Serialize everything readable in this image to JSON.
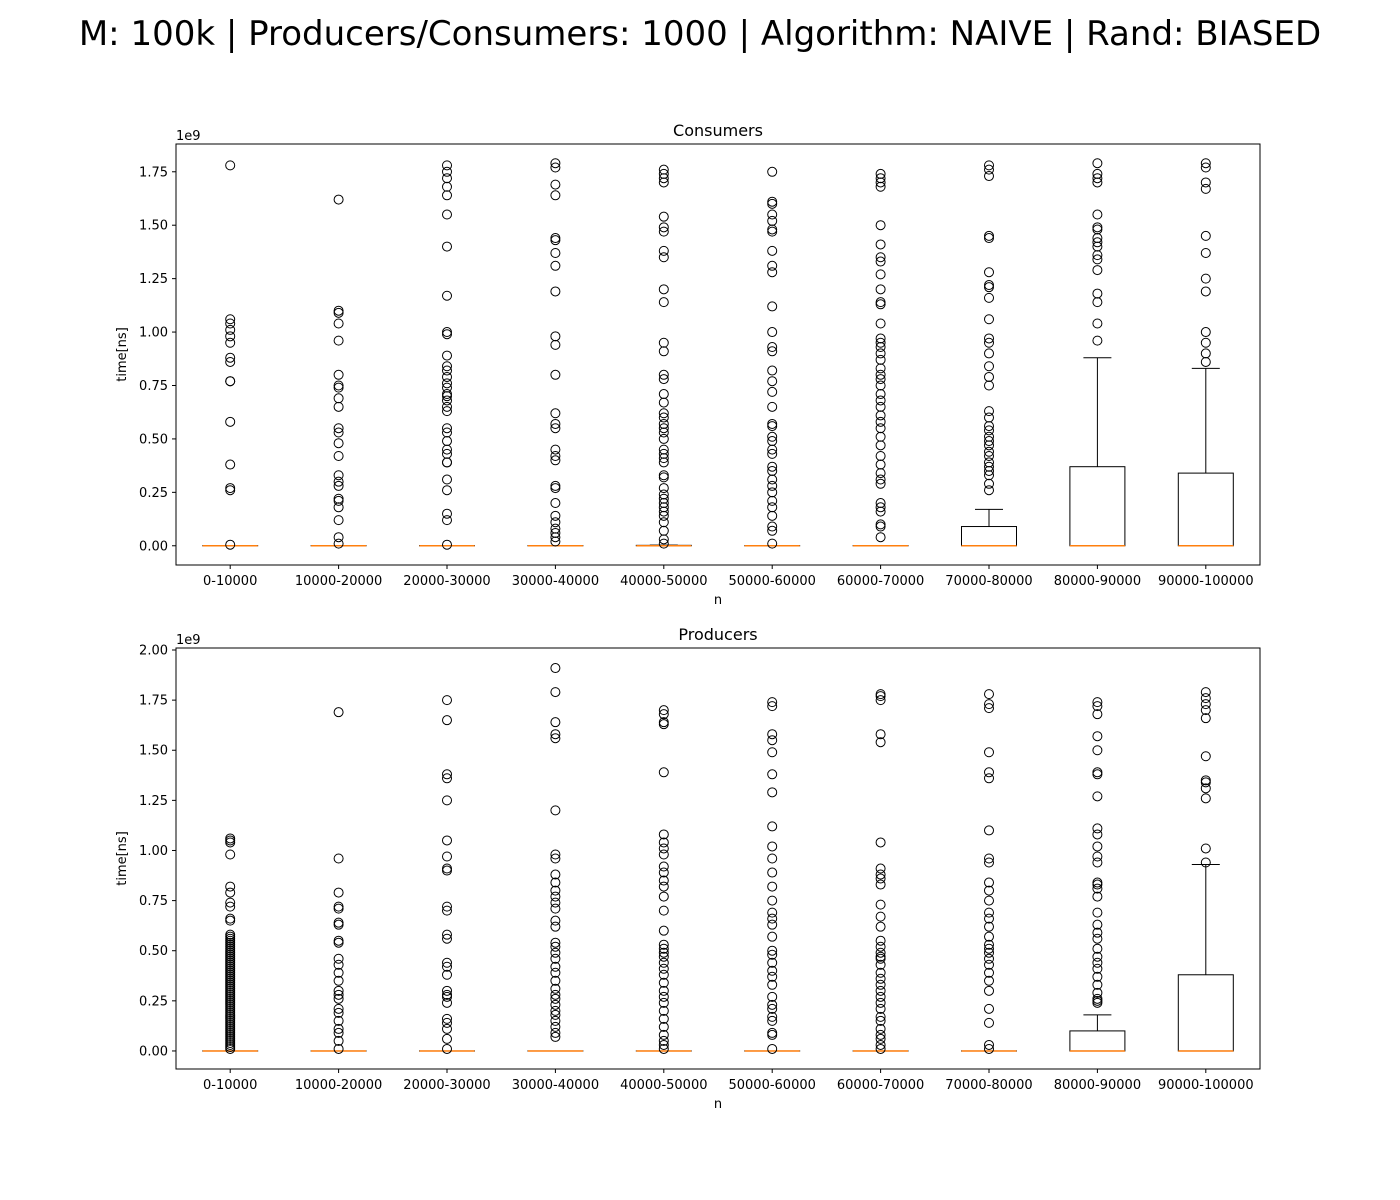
{
  "figure": {
    "title": "M: 100k | Producers/Consumers: 1000 | Algorithm: NAIVE | Rand: BIASED"
  },
  "colors": {
    "median": "#ff7f0e",
    "box": "#000000",
    "flier": "#000000",
    "background": "#ffffff"
  },
  "chart_data": [
    {
      "type": "box",
      "title": "Consumers",
      "xlabel": "n",
      "ylabel": "time[ns]",
      "y_offset_label": "1e9",
      "ylim": [
        -0.09,
        1.88
      ],
      "yticks": [
        0,
        0.25,
        0.5,
        0.75,
        1.0,
        1.25,
        1.5,
        1.75
      ],
      "ytick_labels": [
        "0.00",
        "0.25",
        "0.50",
        "0.75",
        "1.00",
        "1.25",
        "1.50",
        "1.75"
      ],
      "categories": [
        "0-10000",
        "10000-20000",
        "20000-30000",
        "30000-40000",
        "40000-50000",
        "50000-60000",
        "60000-70000",
        "70000-80000",
        "80000-90000",
        "90000-100000"
      ],
      "boxes": [
        {
          "q1": 0,
          "median": 0,
          "q3": 0,
          "whisker_low": 0,
          "whisker_high": 0,
          "fliers": [
            1.78,
            1.06,
            1.04,
            1.01,
            0.98,
            0.95,
            0.88,
            0.86,
            0.77,
            0.77,
            0.58,
            0.38,
            0.27,
            0.26,
            0.005
          ]
        },
        {
          "q1": 0,
          "median": 0,
          "q3": 0,
          "whisker_low": 0,
          "whisker_high": 0,
          "fliers": [
            1.62,
            1.1,
            1.09,
            1.04,
            0.96,
            0.8,
            0.75,
            0.74,
            0.69,
            0.65,
            0.55,
            0.53,
            0.48,
            0.42,
            0.33,
            0.3,
            0.28,
            0.22,
            0.21,
            0.18,
            0.12,
            0.04,
            0.01
          ]
        },
        {
          "q1": 0,
          "median": 0,
          "q3": 0,
          "whisker_low": 0,
          "whisker_high": 0,
          "fliers": [
            1.78,
            1.75,
            1.72,
            1.68,
            1.64,
            1.55,
            1.4,
            1.17,
            1.0,
            0.99,
            0.89,
            0.84,
            0.82,
            0.79,
            0.76,
            0.74,
            0.71,
            0.7,
            0.68,
            0.65,
            0.63,
            0.55,
            0.53,
            0.49,
            0.45,
            0.43,
            0.39,
            0.39,
            0.31,
            0.26,
            0.15,
            0.12,
            0.005
          ]
        },
        {
          "q1": 0,
          "median": 0,
          "q3": 0,
          "whisker_low": 0,
          "whisker_high": 0,
          "fliers": [
            1.79,
            1.77,
            1.69,
            1.64,
            1.44,
            1.43,
            1.37,
            1.31,
            1.19,
            0.98,
            0.94,
            0.8,
            0.62,
            0.57,
            0.55,
            0.45,
            0.42,
            0.4,
            0.28,
            0.27,
            0.2,
            0.14,
            0.11,
            0.08,
            0.06,
            0.04,
            0.02
          ]
        },
        {
          "q1": 0,
          "median": 0,
          "q3": 0.002,
          "whisker_low": 0,
          "whisker_high": 0.003,
          "fliers": [
            1.76,
            1.74,
            1.72,
            1.7,
            1.54,
            1.49,
            1.47,
            1.38,
            1.35,
            1.2,
            1.14,
            0.95,
            0.91,
            0.8,
            0.78,
            0.71,
            0.67,
            0.62,
            0.6,
            0.57,
            0.55,
            0.53,
            0.5,
            0.45,
            0.43,
            0.41,
            0.39,
            0.33,
            0.32,
            0.27,
            0.24,
            0.22,
            0.2,
            0.18,
            0.16,
            0.14,
            0.11,
            0.07,
            0.03,
            0.01
          ]
        },
        {
          "q1": 0,
          "median": 0,
          "q3": 0,
          "whisker_low": 0,
          "whisker_high": 0,
          "fliers": [
            1.75,
            1.61,
            1.6,
            1.55,
            1.52,
            1.48,
            1.47,
            1.38,
            1.31,
            1.28,
            1.12,
            1.0,
            0.93,
            0.91,
            0.82,
            0.77,
            0.72,
            0.65,
            0.57,
            0.56,
            0.51,
            0.49,
            0.45,
            0.43,
            0.37,
            0.35,
            0.31,
            0.28,
            0.25,
            0.21,
            0.18,
            0.14,
            0.09,
            0.07,
            0.01
          ]
        },
        {
          "q1": 0,
          "median": 0,
          "q3": 0,
          "whisker_low": 0,
          "whisker_high": 0,
          "fliers": [
            1.74,
            1.72,
            1.7,
            1.68,
            1.5,
            1.41,
            1.35,
            1.33,
            1.27,
            1.2,
            1.14,
            1.13,
            1.04,
            0.97,
            0.95,
            0.93,
            0.9,
            0.87,
            0.83,
            0.8,
            0.78,
            0.75,
            0.71,
            0.68,
            0.65,
            0.61,
            0.58,
            0.55,
            0.51,
            0.47,
            0.42,
            0.38,
            0.34,
            0.31,
            0.29,
            0.2,
            0.18,
            0.16,
            0.1,
            0.09,
            0.04
          ]
        },
        {
          "q1": 0,
          "median": 0,
          "q3": 0.09,
          "whisker_low": 0,
          "whisker_high": 0.17,
          "fliers": [
            1.78,
            1.76,
            1.73,
            1.45,
            1.44,
            1.28,
            1.22,
            1.21,
            1.16,
            1.06,
            0.97,
            0.95,
            0.9,
            0.84,
            0.79,
            0.75,
            0.63,
            0.6,
            0.56,
            0.54,
            0.51,
            0.49,
            0.47,
            0.44,
            0.42,
            0.39,
            0.37,
            0.35,
            0.33,
            0.29,
            0.26
          ]
        },
        {
          "q1": 0,
          "median": 0,
          "q3": 0.37,
          "whisker_low": 0,
          "whisker_high": 0.88,
          "fliers": [
            1.79,
            1.74,
            1.72,
            1.7,
            1.55,
            1.49,
            1.48,
            1.44,
            1.42,
            1.4,
            1.36,
            1.34,
            1.29,
            1.18,
            1.14,
            1.04,
            0.96
          ]
        },
        {
          "q1": 0,
          "median": 0,
          "q3": 0.34,
          "whisker_low": 0,
          "whisker_high": 0.83,
          "fliers": [
            1.79,
            1.77,
            1.7,
            1.67,
            1.45,
            1.37,
            1.25,
            1.19,
            1.0,
            0.95,
            0.9,
            0.86
          ]
        }
      ]
    },
    {
      "type": "box",
      "title": "Producers",
      "xlabel": "n",
      "ylabel": "time[ns]",
      "y_offset_label": "1e9",
      "ylim": [
        -0.09,
        2.01
      ],
      "yticks": [
        0,
        0.25,
        0.5,
        0.75,
        1.0,
        1.25,
        1.5,
        1.75,
        2.0
      ],
      "ytick_labels": [
        "0.00",
        "0.25",
        "0.50",
        "0.75",
        "1.00",
        "1.25",
        "1.50",
        "1.75",
        "2.00"
      ],
      "categories": [
        "0-10000",
        "10000-20000",
        "20000-30000",
        "30000-40000",
        "40000-50000",
        "50000-60000",
        "60000-70000",
        "70000-80000",
        "80000-90000",
        "90000-100000"
      ],
      "boxes": [
        {
          "q1": 0,
          "median": 0,
          "q3": 0,
          "whisker_low": 0,
          "whisker_high": 0,
          "fliers": [
            1.06,
            1.05,
            1.04,
            0.98,
            0.82,
            0.79,
            0.74,
            0.72,
            0.66,
            0.65,
            0.58,
            0.57,
            0.56,
            0.55,
            0.54,
            0.53,
            0.52,
            0.51,
            0.5,
            0.49,
            0.48,
            0.47,
            0.46,
            0.45,
            0.44,
            0.43,
            0.42,
            0.41,
            0.4,
            0.39,
            0.38,
            0.37,
            0.36,
            0.35,
            0.34,
            0.33,
            0.32,
            0.31,
            0.3,
            0.29,
            0.28,
            0.27,
            0.26,
            0.25,
            0.24,
            0.23,
            0.22,
            0.21,
            0.2,
            0.19,
            0.18,
            0.17,
            0.16,
            0.15,
            0.14,
            0.13,
            0.12,
            0.11,
            0.1,
            0.09,
            0.08,
            0.07,
            0.06,
            0.05,
            0.04,
            0.03,
            0.02,
            0.01
          ]
        },
        {
          "q1": 0,
          "median": 0,
          "q3": 0,
          "whisker_low": 0,
          "whisker_high": 0,
          "fliers": [
            1.69,
            0.96,
            0.79,
            0.72,
            0.71,
            0.64,
            0.63,
            0.55,
            0.54,
            0.46,
            0.43,
            0.39,
            0.35,
            0.3,
            0.28,
            0.26,
            0.21,
            0.19,
            0.15,
            0.11,
            0.09,
            0.05,
            0.01
          ]
        },
        {
          "q1": 0,
          "median": 0,
          "q3": 0,
          "whisker_low": 0,
          "whisker_high": 0,
          "fliers": [
            1.75,
            1.65,
            1.38,
            1.36,
            1.25,
            1.05,
            0.97,
            0.91,
            0.9,
            0.72,
            0.7,
            0.58,
            0.56,
            0.44,
            0.42,
            0.38,
            0.3,
            0.28,
            0.27,
            0.24,
            0.16,
            0.14,
            0.11,
            0.06,
            0.01
          ]
        },
        {
          "q1": 0,
          "median": 0,
          "q3": 0,
          "whisker_low": 0,
          "whisker_high": 0,
          "fliers": [
            1.91,
            1.79,
            1.64,
            1.58,
            1.56,
            1.2,
            0.98,
            0.96,
            0.88,
            0.84,
            0.8,
            0.77,
            0.74,
            0.71,
            0.65,
            0.62,
            0.54,
            0.52,
            0.49,
            0.46,
            0.42,
            0.39,
            0.35,
            0.31,
            0.28,
            0.26,
            0.23,
            0.2,
            0.18,
            0.15,
            0.12,
            0.09,
            0.07
          ]
        },
        {
          "q1": 0,
          "median": 0,
          "q3": 0,
          "whisker_low": 0,
          "whisker_high": 0,
          "fliers": [
            1.7,
            1.68,
            1.64,
            1.63,
            1.39,
            1.08,
            1.04,
            1.01,
            0.98,
            0.92,
            0.89,
            0.85,
            0.82,
            0.77,
            0.7,
            0.6,
            0.53,
            0.51,
            0.49,
            0.47,
            0.44,
            0.41,
            0.38,
            0.34,
            0.3,
            0.27,
            0.24,
            0.2,
            0.16,
            0.12,
            0.08,
            0.05,
            0.03,
            0.01
          ]
        },
        {
          "q1": 0,
          "median": 0,
          "q3": 0,
          "whisker_low": 0,
          "whisker_high": 0,
          "fliers": [
            1.74,
            1.72,
            1.58,
            1.55,
            1.49,
            1.38,
            1.29,
            1.12,
            1.02,
            0.96,
            0.89,
            0.82,
            0.75,
            0.69,
            0.66,
            0.63,
            0.57,
            0.5,
            0.48,
            0.44,
            0.4,
            0.37,
            0.33,
            0.27,
            0.23,
            0.21,
            0.17,
            0.15,
            0.09,
            0.08,
            0.01
          ]
        },
        {
          "q1": 0,
          "median": 0,
          "q3": 0,
          "whisker_low": 0,
          "whisker_high": 0,
          "fliers": [
            1.78,
            1.77,
            1.75,
            1.58,
            1.54,
            1.04,
            0.91,
            0.88,
            0.86,
            0.83,
            0.73,
            0.67,
            0.62,
            0.55,
            0.52,
            0.49,
            0.47,
            0.46,
            0.43,
            0.39,
            0.36,
            0.33,
            0.3,
            0.27,
            0.24,
            0.21,
            0.17,
            0.15,
            0.11,
            0.08,
            0.06,
            0.03,
            0.01
          ]
        },
        {
          "q1": 0,
          "median": 0,
          "q3": 0,
          "whisker_low": 0,
          "whisker_high": 0,
          "fliers": [
            1.78,
            1.73,
            1.71,
            1.49,
            1.39,
            1.36,
            1.1,
            0.96,
            0.94,
            0.84,
            0.8,
            0.75,
            0.69,
            0.66,
            0.62,
            0.57,
            0.53,
            0.51,
            0.49,
            0.46,
            0.43,
            0.39,
            0.35,
            0.3,
            0.21,
            0.14,
            0.03,
            0.01
          ]
        },
        {
          "q1": 0,
          "median": 0,
          "q3": 0.1,
          "whisker_low": 0,
          "whisker_high": 0.18,
          "fliers": [
            1.74,
            1.72,
            1.68,
            1.57,
            1.5,
            1.39,
            1.38,
            1.27,
            1.11,
            1.08,
            1.02,
            0.97,
            0.94,
            0.84,
            0.83,
            0.81,
            0.77,
            0.69,
            0.63,
            0.59,
            0.56,
            0.51,
            0.47,
            0.44,
            0.41,
            0.37,
            0.33,
            0.29,
            0.26,
            0.25,
            0.24
          ]
        },
        {
          "q1": 0,
          "median": 0,
          "q3": 0.38,
          "whisker_low": 0,
          "whisker_high": 0.93,
          "fliers": [
            1.79,
            1.76,
            1.73,
            1.7,
            1.66,
            1.47,
            1.35,
            1.34,
            1.31,
            1.26,
            1.01,
            0.94
          ]
        }
      ]
    }
  ]
}
